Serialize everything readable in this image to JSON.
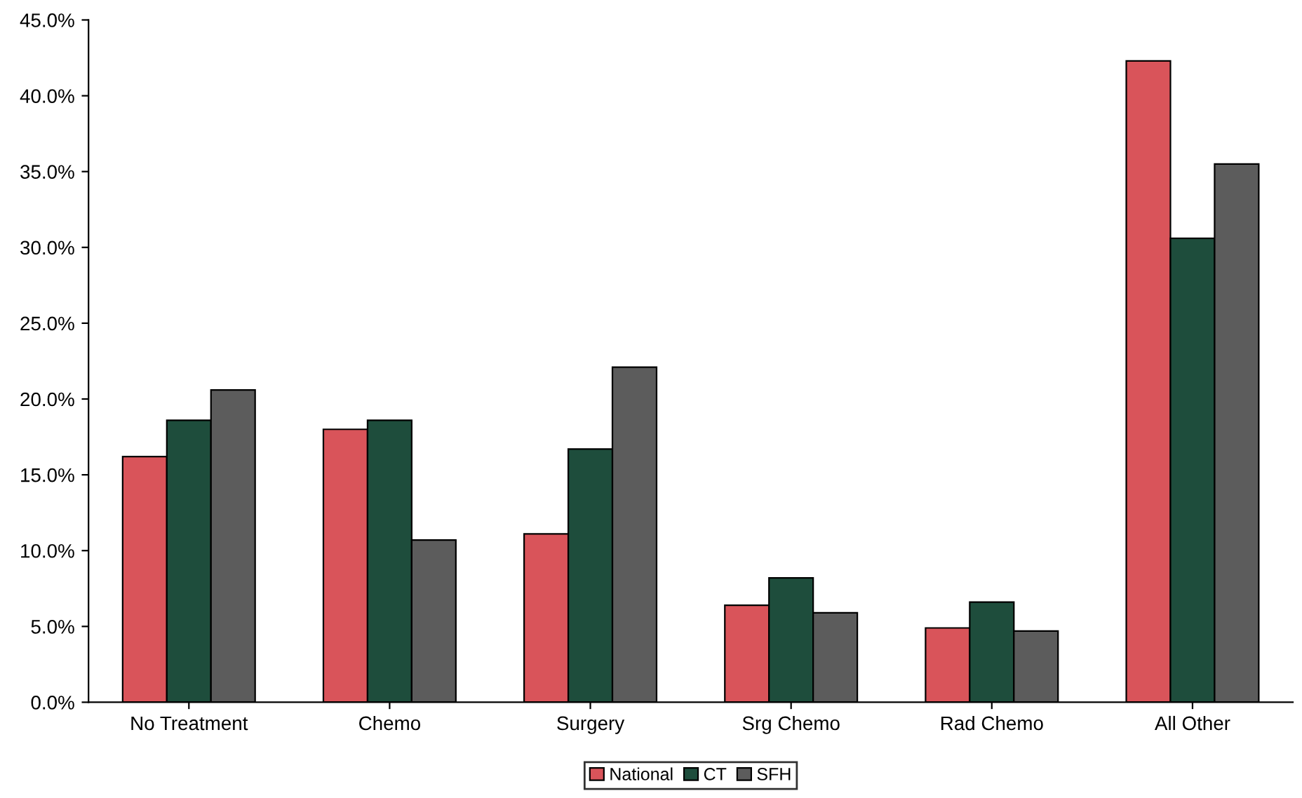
{
  "chart_data": {
    "type": "bar",
    "categories": [
      "No Treatment",
      "Chemo",
      "Surgery",
      "Srg Chemo",
      "Rad Chemo",
      "All Other"
    ],
    "series": [
      {
        "name": "National",
        "color": "#d9545a",
        "values": [
          16.2,
          18.0,
          11.1,
          6.4,
          4.9,
          42.3
        ]
      },
      {
        "name": "CT",
        "color": "#1e4d3c",
        "values": [
          18.6,
          18.6,
          16.7,
          8.2,
          6.6,
          30.6
        ]
      },
      {
        "name": "SFH",
        "color": "#5c5c5c",
        "values": [
          20.6,
          10.7,
          22.1,
          5.9,
          4.7,
          35.5
        ]
      }
    ],
    "ylim": [
      0,
      45
    ],
    "yticks": [
      {
        "value": 0,
        "label": "0.0%"
      },
      {
        "value": 5,
        "label": "5.0%"
      },
      {
        "value": 10,
        "label": "10.0%"
      },
      {
        "value": 15,
        "label": "15.0%"
      },
      {
        "value": 20,
        "label": "20.0%"
      },
      {
        "value": 25,
        "label": "25.0%"
      },
      {
        "value": 30,
        "label": "30.0%"
      },
      {
        "value": 35,
        "label": "35.0%"
      },
      {
        "value": 40,
        "label": "40.0%"
      },
      {
        "value": 45,
        "label": "45.0%"
      }
    ],
    "grid": false,
    "legend": "bottom"
  }
}
